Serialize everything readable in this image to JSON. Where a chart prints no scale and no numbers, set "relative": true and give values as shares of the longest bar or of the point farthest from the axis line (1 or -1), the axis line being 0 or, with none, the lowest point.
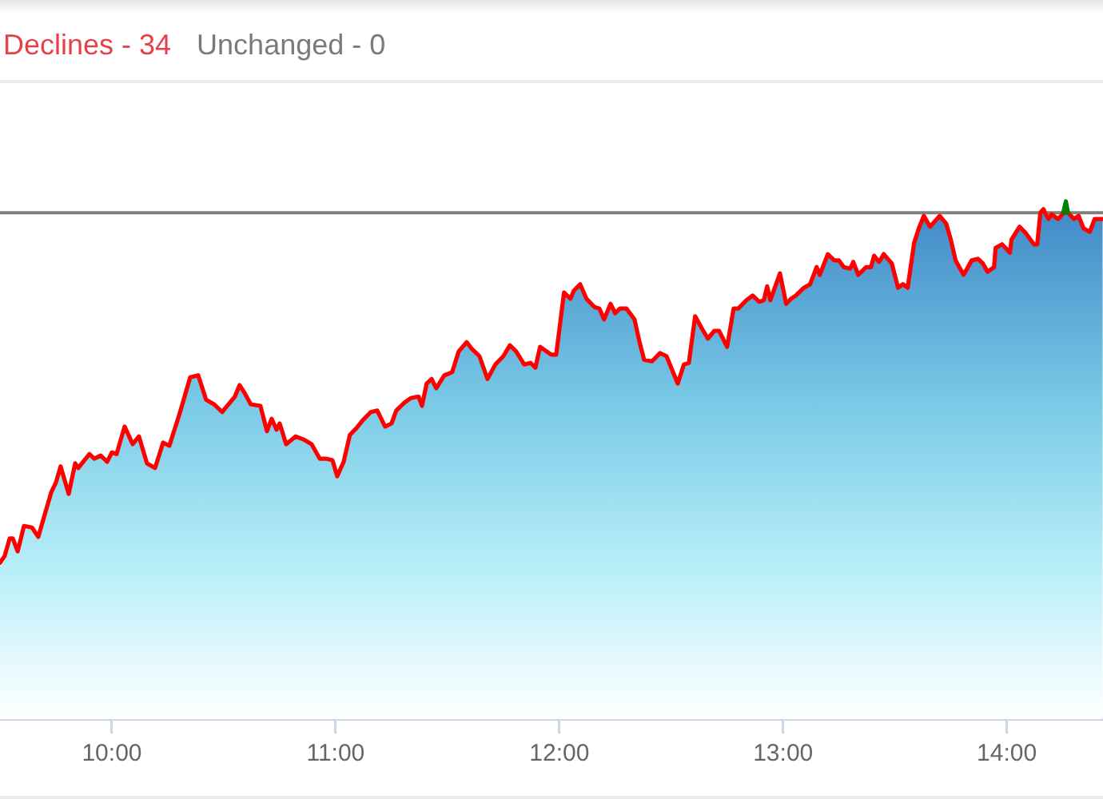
{
  "chart_data": {
    "type": "area",
    "relative": true,
    "annotations": [
      "Declines - 34",
      "Unchanged - 0"
    ],
    "xlim": [
      9.5,
      14.43
    ],
    "xticks": [
      {
        "value": 10,
        "label": "10:00"
      },
      {
        "value": 11,
        "label": "11:00"
      },
      {
        "value": 12,
        "label": "12:00"
      },
      {
        "value": 13,
        "label": "13:00"
      },
      {
        "value": 14,
        "label": "14:00"
      }
    ],
    "series": [
      {
        "color": "#ff0000",
        "x": [
          9.5,
          9.521,
          9.543,
          9.557,
          9.579,
          9.607,
          9.643,
          9.671,
          9.7,
          9.729,
          9.75,
          9.771,
          9.807,
          9.836,
          9.85,
          9.9,
          9.921,
          9.95,
          9.979,
          10.0,
          10.021,
          10.057,
          10.093,
          10.121,
          10.157,
          10.193,
          10.229,
          10.257,
          10.3,
          10.321,
          10.35,
          10.386,
          10.421,
          10.457,
          10.493,
          10.521,
          10.55,
          10.571,
          10.593,
          10.621,
          10.664,
          10.693,
          10.714,
          10.736,
          10.75,
          10.779,
          10.821,
          10.857,
          10.893,
          10.929,
          10.957,
          10.986,
          11.007,
          11.036,
          11.064,
          11.093,
          11.121,
          11.157,
          11.186,
          11.221,
          11.25,
          11.271,
          11.307,
          11.336,
          11.371,
          11.386,
          11.407,
          11.429,
          11.45,
          11.486,
          11.521,
          11.55,
          11.586,
          11.607,
          11.643,
          11.679,
          11.714,
          11.75,
          11.779,
          11.807,
          11.843,
          11.871,
          11.893,
          11.914,
          11.964,
          11.986,
          12.021,
          12.05,
          12.064,
          12.093,
          12.121,
          12.157,
          12.179,
          12.2,
          12.229,
          12.25,
          12.271,
          12.3,
          12.336,
          12.357,
          12.379,
          12.414,
          12.45,
          12.479,
          12.5,
          12.529,
          12.557,
          12.579,
          12.607,
          12.643,
          12.664,
          12.693,
          12.714,
          12.75,
          12.779,
          12.8,
          12.836,
          12.864,
          12.893,
          12.914,
          12.929,
          12.943,
          12.986,
          13.014,
          13.036,
          13.057,
          13.093,
          13.121,
          13.15,
          13.164,
          13.2,
          13.229,
          13.25,
          13.271,
          13.3,
          13.314,
          13.336,
          13.371,
          13.393,
          13.407,
          13.429,
          13.45,
          13.486,
          13.514,
          13.536,
          13.557,
          13.586,
          13.607,
          13.629,
          13.657,
          13.7,
          13.729,
          13.75,
          13.771,
          13.807,
          13.843,
          13.871,
          13.893,
          13.914,
          13.943,
          13.95,
          13.979,
          14.014,
          14.021,
          14.057,
          14.086,
          14.121,
          14.136,
          14.15,
          14.164,
          14.171,
          14.186,
          14.2,
          14.229,
          14.243,
          14.252,
          14.274,
          14.279,
          14.3,
          14.321,
          14.343,
          14.371,
          14.393,
          14.429
        ],
        "values": [
          0.302,
          0.315,
          0.349,
          0.349,
          0.324,
          0.373,
          0.37,
          0.352,
          0.395,
          0.438,
          0.457,
          0.488,
          0.435,
          0.494,
          0.485,
          0.512,
          0.503,
          0.509,
          0.497,
          0.515,
          0.512,
          0.565,
          0.531,
          0.546,
          0.494,
          0.485,
          0.534,
          0.528,
          0.586,
          0.617,
          0.66,
          0.664,
          0.617,
          0.608,
          0.593,
          0.608,
          0.623,
          0.645,
          0.63,
          0.608,
          0.605,
          0.556,
          0.58,
          0.559,
          0.571,
          0.531,
          0.546,
          0.54,
          0.531,
          0.503,
          0.503,
          0.5,
          0.469,
          0.497,
          0.549,
          0.562,
          0.577,
          0.593,
          0.596,
          0.565,
          0.571,
          0.596,
          0.611,
          0.62,
          0.623,
          0.605,
          0.648,
          0.657,
          0.639,
          0.664,
          0.67,
          0.71,
          0.728,
          0.716,
          0.701,
          0.657,
          0.685,
          0.701,
          0.722,
          0.71,
          0.685,
          0.688,
          0.679,
          0.719,
          0.704,
          0.704,
          0.824,
          0.812,
          0.827,
          0.84,
          0.812,
          0.796,
          0.793,
          0.772,
          0.802,
          0.784,
          0.793,
          0.793,
          0.772,
          0.731,
          0.694,
          0.691,
          0.707,
          0.701,
          0.679,
          0.648,
          0.685,
          0.688,
          0.778,
          0.75,
          0.735,
          0.75,
          0.75,
          0.719,
          0.793,
          0.793,
          0.809,
          0.818,
          0.806,
          0.809,
          0.836,
          0.809,
          0.861,
          0.802,
          0.812,
          0.818,
          0.833,
          0.84,
          0.873,
          0.858,
          0.898,
          0.886,
          0.886,
          0.873,
          0.87,
          0.883,
          0.858,
          0.873,
          0.873,
          0.895,
          0.883,
          0.898,
          0.88,
          0.833,
          0.84,
          0.833,
          0.92,
          0.948,
          0.972,
          0.951,
          0.972,
          0.957,
          0.926,
          0.886,
          0.858,
          0.886,
          0.889,
          0.88,
          0.864,
          0.873,
          0.91,
          0.917,
          0.901,
          0.926,
          0.951,
          0.938,
          0.917,
          0.917,
          0.978,
          0.985,
          0.978,
          0.966,
          0.975,
          0.966,
          0.972,
          0.978,
          0.978,
          0.978,
          0.966,
          0.972,
          0.948,
          0.941,
          0.966,
          0.966
        ]
      },
      {
        "type": "line",
        "color": "#008000",
        "x": [
          14.252,
          14.264,
          14.274
        ],
        "values": [
          0.978,
          1,
          0.978
        ]
      }
    ],
    "ref_lines": [
      {
        "axis": "y",
        "value": 0.978,
        "color": "#808080"
      }
    ]
  }
}
